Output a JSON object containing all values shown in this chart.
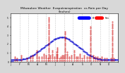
{
  "title": "Milwaukee Weather  Evapotranspiration  vs Rain per Day\n(Inches)",
  "title_fontsize": 3.2,
  "background_color": "#d8d8d8",
  "plot_bg_color": "#ffffff",
  "legend_et_color": "#0000ff",
  "legend_rain_color": "#ff0000",
  "legend_et_label": "ET",
  "legend_rain_label": "Rain",
  "ylim": [
    0,
    0.55
  ],
  "xlim": [
    0,
    365
  ],
  "tick_fontsize": 2.2,
  "dot_size": 0.8,
  "et_color": "#0000cc",
  "rain_color": "#cc0000",
  "grid_color": "#999999",
  "month_ticks": [
    0,
    31,
    59,
    90,
    120,
    151,
    181,
    212,
    243,
    273,
    304,
    334,
    365
  ],
  "month_labels": [
    "J",
    "F",
    "M",
    "A",
    "M",
    "J",
    "J",
    "A",
    "S",
    "O",
    "N",
    "D",
    ""
  ],
  "y_ticks": [
    0.0,
    0.1,
    0.2,
    0.3,
    0.4,
    0.5
  ],
  "y_labels": [
    "0",
    ".1",
    ".2",
    ".3",
    ".4",
    ".5"
  ],
  "et_daily": [
    [
      1,
      0.01
    ],
    [
      2,
      0.02
    ],
    [
      4,
      0.02
    ],
    [
      6,
      0.02
    ],
    [
      8,
      0.01
    ],
    [
      10,
      0.02
    ],
    [
      12,
      0.02
    ],
    [
      14,
      0.02
    ],
    [
      16,
      0.02
    ],
    [
      18,
      0.02
    ],
    [
      20,
      0.02
    ],
    [
      22,
      0.02
    ],
    [
      24,
      0.02
    ],
    [
      26,
      0.02
    ],
    [
      28,
      0.02
    ],
    [
      30,
      0.02
    ],
    [
      32,
      0.02
    ],
    [
      34,
      0.02
    ],
    [
      36,
      0.02
    ],
    [
      38,
      0.02
    ],
    [
      40,
      0.03
    ],
    [
      42,
      0.03
    ],
    [
      44,
      0.03
    ],
    [
      46,
      0.03
    ],
    [
      48,
      0.03
    ],
    [
      50,
      0.03
    ],
    [
      52,
      0.04
    ],
    [
      54,
      0.04
    ],
    [
      56,
      0.04
    ],
    [
      58,
      0.04
    ],
    [
      60,
      0.05
    ],
    [
      62,
      0.05
    ],
    [
      64,
      0.05
    ],
    [
      66,
      0.06
    ],
    [
      68,
      0.06
    ],
    [
      70,
      0.06
    ],
    [
      72,
      0.07
    ],
    [
      74,
      0.07
    ],
    [
      76,
      0.07
    ],
    [
      78,
      0.08
    ],
    [
      80,
      0.08
    ],
    [
      82,
      0.09
    ],
    [
      84,
      0.09
    ],
    [
      86,
      0.1
    ],
    [
      88,
      0.1
    ],
    [
      90,
      0.11
    ],
    [
      92,
      0.11
    ],
    [
      94,
      0.12
    ],
    [
      96,
      0.12
    ],
    [
      98,
      0.13
    ],
    [
      100,
      0.13
    ],
    [
      102,
      0.14
    ],
    [
      104,
      0.14
    ],
    [
      106,
      0.15
    ],
    [
      108,
      0.15
    ],
    [
      110,
      0.16
    ],
    [
      112,
      0.16
    ],
    [
      114,
      0.17
    ],
    [
      116,
      0.17
    ],
    [
      118,
      0.18
    ],
    [
      120,
      0.18
    ],
    [
      122,
      0.19
    ],
    [
      124,
      0.19
    ],
    [
      126,
      0.2
    ],
    [
      128,
      0.2
    ],
    [
      130,
      0.21
    ],
    [
      132,
      0.21
    ],
    [
      134,
      0.22
    ],
    [
      136,
      0.22
    ],
    [
      138,
      0.23
    ],
    [
      140,
      0.23
    ],
    [
      142,
      0.24
    ],
    [
      144,
      0.24
    ],
    [
      146,
      0.25
    ],
    [
      148,
      0.25
    ],
    [
      150,
      0.25
    ],
    [
      152,
      0.26
    ],
    [
      154,
      0.26
    ],
    [
      156,
      0.26
    ],
    [
      158,
      0.27
    ],
    [
      160,
      0.27
    ],
    [
      162,
      0.27
    ],
    [
      164,
      0.27
    ],
    [
      166,
      0.28
    ],
    [
      168,
      0.28
    ],
    [
      170,
      0.28
    ],
    [
      172,
      0.28
    ],
    [
      174,
      0.28
    ],
    [
      176,
      0.28
    ],
    [
      178,
      0.28
    ],
    [
      180,
      0.28
    ],
    [
      182,
      0.28
    ],
    [
      184,
      0.27
    ],
    [
      186,
      0.27
    ],
    [
      188,
      0.27
    ],
    [
      190,
      0.27
    ],
    [
      192,
      0.26
    ],
    [
      194,
      0.26
    ],
    [
      196,
      0.25
    ],
    [
      198,
      0.25
    ],
    [
      200,
      0.25
    ],
    [
      202,
      0.24
    ],
    [
      204,
      0.24
    ],
    [
      206,
      0.23
    ],
    [
      208,
      0.23
    ],
    [
      210,
      0.22
    ],
    [
      212,
      0.22
    ],
    [
      214,
      0.21
    ],
    [
      216,
      0.21
    ],
    [
      218,
      0.2
    ],
    [
      220,
      0.2
    ],
    [
      222,
      0.19
    ],
    [
      224,
      0.19
    ],
    [
      226,
      0.18
    ],
    [
      228,
      0.18
    ],
    [
      230,
      0.17
    ],
    [
      232,
      0.17
    ],
    [
      234,
      0.16
    ],
    [
      236,
      0.16
    ],
    [
      238,
      0.15
    ],
    [
      240,
      0.15
    ],
    [
      242,
      0.14
    ],
    [
      244,
      0.14
    ],
    [
      246,
      0.13
    ],
    [
      248,
      0.12
    ],
    [
      250,
      0.12
    ],
    [
      252,
      0.11
    ],
    [
      254,
      0.11
    ],
    [
      256,
      0.1
    ],
    [
      258,
      0.1
    ],
    [
      260,
      0.09
    ],
    [
      262,
      0.09
    ],
    [
      264,
      0.08
    ],
    [
      266,
      0.08
    ],
    [
      268,
      0.07
    ],
    [
      270,
      0.07
    ],
    [
      272,
      0.07
    ],
    [
      274,
      0.06
    ],
    [
      276,
      0.06
    ],
    [
      278,
      0.06
    ],
    [
      280,
      0.05
    ],
    [
      282,
      0.05
    ],
    [
      284,
      0.05
    ],
    [
      286,
      0.04
    ],
    [
      288,
      0.04
    ],
    [
      290,
      0.04
    ],
    [
      292,
      0.04
    ],
    [
      294,
      0.03
    ],
    [
      296,
      0.03
    ],
    [
      298,
      0.03
    ],
    [
      300,
      0.03
    ],
    [
      302,
      0.03
    ],
    [
      304,
      0.03
    ],
    [
      306,
      0.02
    ],
    [
      308,
      0.02
    ],
    [
      310,
      0.02
    ],
    [
      312,
      0.02
    ],
    [
      314,
      0.02
    ],
    [
      316,
      0.02
    ],
    [
      318,
      0.02
    ],
    [
      320,
      0.02
    ],
    [
      322,
      0.02
    ],
    [
      324,
      0.02
    ],
    [
      326,
      0.02
    ],
    [
      328,
      0.02
    ],
    [
      330,
      0.02
    ],
    [
      332,
      0.02
    ],
    [
      334,
      0.02
    ],
    [
      336,
      0.02
    ],
    [
      338,
      0.02
    ],
    [
      340,
      0.02
    ],
    [
      342,
      0.02
    ],
    [
      344,
      0.02
    ],
    [
      346,
      0.02
    ],
    [
      348,
      0.02
    ],
    [
      350,
      0.02
    ],
    [
      352,
      0.02
    ],
    [
      354,
      0.02
    ],
    [
      356,
      0.02
    ],
    [
      358,
      0.02
    ],
    [
      360,
      0.02
    ],
    [
      362,
      0.02
    ],
    [
      364,
      0.02
    ]
  ],
  "rain_events": [
    {
      "day": 14,
      "amount": 0.06
    },
    {
      "day": 22,
      "amount": 0.04
    },
    {
      "day": 35,
      "amount": 0.08
    },
    {
      "day": 55,
      "amount": 0.04
    },
    {
      "day": 68,
      "amount": 0.05
    },
    {
      "day": 75,
      "amount": 0.07
    },
    {
      "day": 88,
      "amount": 0.12
    },
    {
      "day": 95,
      "amount": 0.05
    },
    {
      "day": 105,
      "amount": 0.06
    },
    {
      "day": 112,
      "amount": 0.09
    },
    {
      "day": 120,
      "amount": 0.07
    },
    {
      "day": 128,
      "amount": 0.04
    },
    {
      "day": 135,
      "amount": 0.08
    },
    {
      "day": 142,
      "amount": 0.12
    },
    {
      "day": 149,
      "amount": 0.05
    },
    {
      "day": 155,
      "amount": 0.1
    },
    {
      "day": 158,
      "amount": 0.16
    },
    {
      "day": 165,
      "amount": 0.04
    },
    {
      "day": 170,
      "amount": 0.06
    },
    {
      "day": 175,
      "amount": 0.08
    },
    {
      "day": 180,
      "amount": 0.07
    },
    {
      "day": 185,
      "amount": 0.35
    },
    {
      "day": 192,
      "amount": 0.1
    },
    {
      "day": 200,
      "amount": 0.05
    },
    {
      "day": 207,
      "amount": 0.08
    },
    {
      "day": 215,
      "amount": 0.12
    },
    {
      "day": 222,
      "amount": 0.06
    },
    {
      "day": 228,
      "amount": 0.05
    },
    {
      "day": 235,
      "amount": 0.09
    },
    {
      "day": 242,
      "amount": 0.04
    },
    {
      "day": 250,
      "amount": 0.07
    },
    {
      "day": 258,
      "amount": 0.06
    },
    {
      "day": 265,
      "amount": 0.05
    },
    {
      "day": 272,
      "amount": 0.4
    },
    {
      "day": 280,
      "amount": 0.08
    },
    {
      "day": 288,
      "amount": 0.05
    },
    {
      "day": 295,
      "amount": 0.06
    },
    {
      "day": 302,
      "amount": 0.04
    },
    {
      "day": 310,
      "amount": 0.05
    },
    {
      "day": 318,
      "amount": 0.03
    },
    {
      "day": 325,
      "amount": 0.04
    },
    {
      "day": 340,
      "amount": 0.03
    },
    {
      "day": 350,
      "amount": 0.03
    },
    {
      "day": 130,
      "amount": 0.5
    },
    {
      "day": 345,
      "amount": 0.45
    }
  ]
}
